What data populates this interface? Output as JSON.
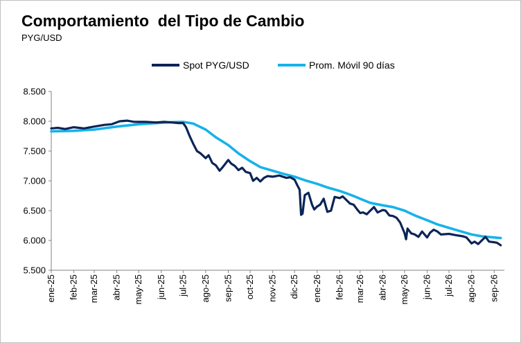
{
  "title": "Comportamiento  del Tipo de Cambio",
  "subtitle": "PYG/USD",
  "chart_data": {
    "type": "line",
    "title": "Comportamiento  del Tipo de Cambio",
    "subtitle": "PYG/USD",
    "ylim": [
      5500,
      8500
    ],
    "yticks": [
      "8.500",
      "8.000",
      "7.500",
      "7.000",
      "6.500",
      "6.000",
      "5.500"
    ],
    "xticks": [
      "ene-25",
      "feb-25",
      "mar-25",
      "abr-25",
      "may-25",
      "jun-25",
      "jul-25",
      "ago-25",
      "sep-25",
      "oct-25",
      "nov-25",
      "dic-25",
      "ene-26",
      "feb-26",
      "mar-26",
      "abr-26",
      "may-26",
      "jun-26",
      "jul-26",
      "ago-26",
      "sep-26"
    ],
    "legend_position": "top",
    "grid": false,
    "series": [
      {
        "name": "Spot PYG/USD",
        "color": "#0b2457",
        "x": [
          "2025-01-01",
          "2025-01-10",
          "2025-01-20",
          "2025-02-01",
          "2025-02-15",
          "2025-03-01",
          "2025-03-15",
          "2025-03-25",
          "2025-04-05",
          "2025-04-15",
          "2025-04-25",
          "2025-05-10",
          "2025-05-25",
          "2025-06-05",
          "2025-06-15",
          "2025-06-25",
          "2025-07-01",
          "2025-07-05",
          "2025-07-10",
          "2025-07-15",
          "2025-07-20",
          "2025-07-25",
          "2025-08-01",
          "2025-08-05",
          "2025-08-10",
          "2025-08-15",
          "2025-08-20",
          "2025-08-25",
          "2025-09-01",
          "2025-09-05",
          "2025-09-10",
          "2025-09-15",
          "2025-09-20",
          "2025-09-25",
          "2025-10-01",
          "2025-10-05",
          "2025-10-10",
          "2025-10-15",
          "2025-10-20",
          "2025-10-25",
          "2025-11-01",
          "2025-11-10",
          "2025-11-20",
          "2025-11-25",
          "2025-12-01",
          "2025-12-05",
          "2025-12-08",
          "2025-12-10",
          "2025-12-12",
          "2025-12-15",
          "2025-12-20",
          "2025-12-25",
          "2025-12-28",
          "2026-01-01",
          "2026-01-05",
          "2026-01-10",
          "2026-01-15",
          "2026-01-20",
          "2026-01-25",
          "2026-02-01",
          "2026-02-05",
          "2026-02-10",
          "2026-02-15",
          "2026-02-20",
          "2026-02-25",
          "2026-03-01",
          "2026-03-05",
          "2026-03-10",
          "2026-03-15",
          "2026-03-20",
          "2026-03-25",
          "2026-04-01",
          "2026-04-05",
          "2026-04-10",
          "2026-04-15",
          "2026-04-20",
          "2026-04-25",
          "2026-05-01",
          "2026-05-03",
          "2026-05-05",
          "2026-05-10",
          "2026-05-15",
          "2026-05-20",
          "2026-05-25",
          "2026-06-01",
          "2026-06-05",
          "2026-06-10",
          "2026-06-15",
          "2026-06-20",
          "2026-07-01",
          "2026-07-10",
          "2026-07-20",
          "2026-07-25",
          "2026-08-01",
          "2026-08-05",
          "2026-08-10",
          "2026-08-15",
          "2026-08-20",
          "2026-08-25",
          "2026-09-01",
          "2026-09-05",
          "2026-09-10"
        ],
        "values": [
          7880,
          7890,
          7870,
          7900,
          7880,
          7910,
          7940,
          7950,
          8000,
          8010,
          7990,
          7990,
          7980,
          7990,
          7980,
          7970,
          7970,
          7900,
          7750,
          7620,
          7500,
          7460,
          7380,
          7430,
          7300,
          7260,
          7170,
          7240,
          7350,
          7290,
          7250,
          7180,
          7220,
          7150,
          7130,
          7000,
          7050,
          6990,
          7050,
          7080,
          7070,
          7090,
          7050,
          7060,
          7020,
          6920,
          6850,
          6430,
          6450,
          6760,
          6800,
          6600,
          6520,
          6570,
          6600,
          6700,
          6480,
          6500,
          6730,
          6710,
          6740,
          6680,
          6620,
          6600,
          6520,
          6460,
          6470,
          6440,
          6500,
          6560,
          6470,
          6510,
          6500,
          6420,
          6410,
          6380,
          6300,
          6120,
          6020,
          6200,
          6120,
          6100,
          6060,
          6150,
          6050,
          6130,
          6180,
          6150,
          6100,
          6110,
          6090,
          6070,
          6050,
          5950,
          5980,
          5940,
          6000,
          6060,
          5980,
          5970,
          5960,
          5920
        ]
      },
      {
        "name": "Prom. Móvil 90 días",
        "color": "#16b2ea",
        "x": [
          "2025-01-01",
          "2025-02-01",
          "2025-03-01",
          "2025-04-01",
          "2025-05-01",
          "2025-06-01",
          "2025-06-15",
          "2025-07-01",
          "2025-07-15",
          "2025-08-01",
          "2025-08-15",
          "2025-09-01",
          "2025-09-15",
          "2025-10-01",
          "2025-10-15",
          "2025-11-01",
          "2025-11-15",
          "2025-12-01",
          "2025-12-15",
          "2026-01-01",
          "2026-01-15",
          "2026-02-01",
          "2026-02-15",
          "2026-03-01",
          "2026-03-15",
          "2026-04-01",
          "2026-04-15",
          "2026-05-01",
          "2026-05-15",
          "2026-06-01",
          "2026-06-15",
          "2026-07-01",
          "2026-07-15",
          "2026-08-01",
          "2026-08-15",
          "2026-09-01",
          "2026-09-10"
        ],
        "values": [
          7830,
          7840,
          7860,
          7910,
          7950,
          7975,
          7985,
          7990,
          7960,
          7860,
          7730,
          7600,
          7460,
          7330,
          7230,
          7170,
          7120,
          7070,
          7010,
          6950,
          6890,
          6830,
          6770,
          6700,
          6630,
          6590,
          6560,
          6500,
          6420,
          6340,
          6270,
          6210,
          6160,
          6100,
          6070,
          6050,
          6040
        ]
      }
    ]
  }
}
